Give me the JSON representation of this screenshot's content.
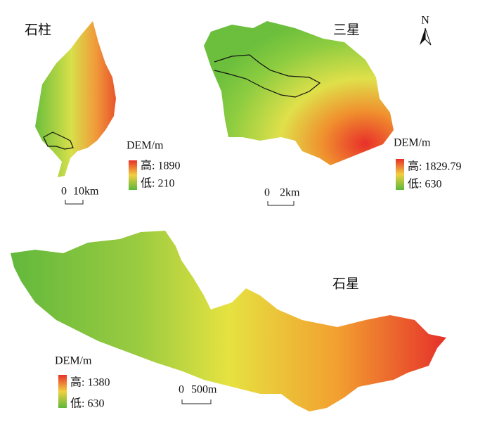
{
  "north": "N",
  "panels": [
    {
      "name": "石柱",
      "legend_title": "DEM/m",
      "high": "高: 1890",
      "low": "低: 210",
      "scale_start": "0",
      "scale_end": "10km"
    },
    {
      "name": "三星",
      "legend_title": "DEM/m",
      "high": "高: 1829.79",
      "low": "低: 630",
      "scale_start": "0",
      "scale_end": "2km"
    },
    {
      "name": "石星",
      "legend_title": "DEM/m",
      "high": "高: 1380",
      "low": "低: 630",
      "scale_start": "0",
      "scale_end": "500m"
    }
  ]
}
